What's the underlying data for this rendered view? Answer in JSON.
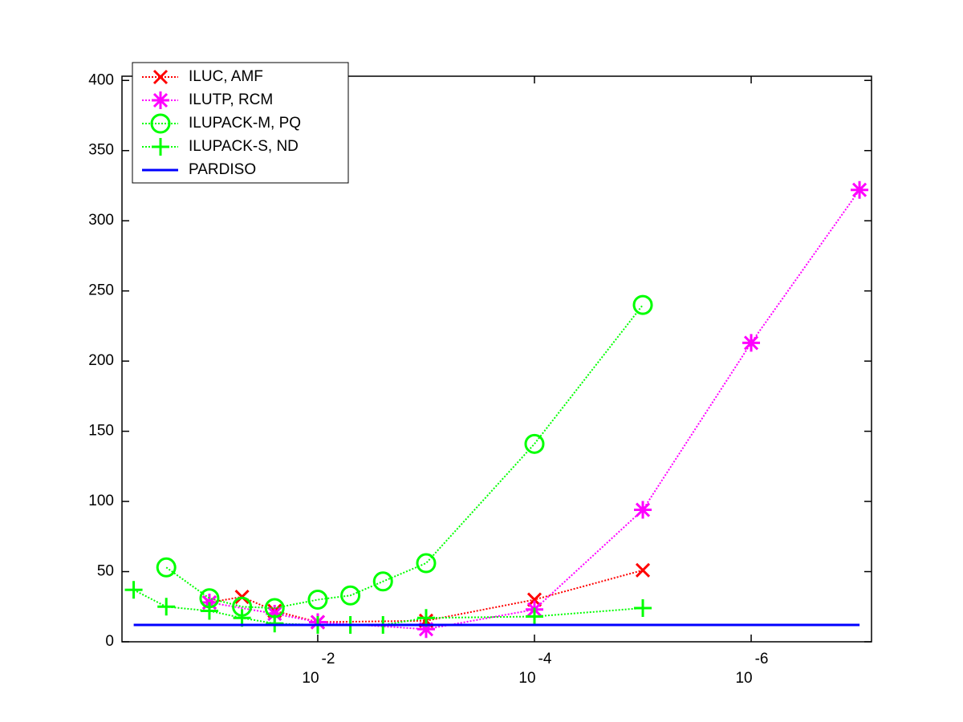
{
  "chart_data": {
    "type": "line",
    "xscale": "log",
    "xlim": [
      0.641,
      7.75e-08
    ],
    "ylim": [
      0,
      403
    ],
    "xticks": [
      {
        "value": 0.01,
        "label": "10",
        "exponent": "-2"
      },
      {
        "value": 0.0001,
        "label": "10",
        "exponent": "-4"
      },
      {
        "value": 1e-06,
        "label": "10",
        "exponent": "-6"
      }
    ],
    "yticks": [
      0,
      50,
      100,
      150,
      200,
      250,
      300,
      350,
      400
    ],
    "legend": "upper left",
    "series": [
      {
        "name": "ILUC, AMF",
        "color": "#ff0000",
        "marker": "x",
        "linestyle": "dotted",
        "x": [
          0.1,
          0.05,
          0.025,
          0.01,
          0.001,
          0.0001,
          1e-05
        ],
        "values": [
          28,
          32,
          22,
          14,
          15,
          30,
          51
        ]
      },
      {
        "name": "ILUTP, RCM",
        "color": "#ff00ff",
        "marker": "*",
        "linestyle": "dotted",
        "x": [
          0.1,
          0.025,
          0.01,
          0.001,
          0.0001,
          1e-05,
          1e-06,
          1e-07
        ],
        "values": [
          28,
          20,
          14,
          9,
          23,
          94,
          213,
          322
        ]
      },
      {
        "name": "ILUPACK-M, PQ",
        "color": "#00ff00",
        "marker": "o",
        "linestyle": "dotted",
        "x": [
          0.25,
          0.1,
          0.05,
          0.025,
          0.01,
          0.005,
          0.0025,
          0.001,
          0.0001,
          1e-05
        ],
        "values": [
          53,
          31,
          25,
          24,
          30,
          33,
          43,
          56,
          141,
          240
        ]
      },
      {
        "name": "ILUPACK-S, ND",
        "color": "#00ff00",
        "marker": "+",
        "linestyle": "dotted",
        "x": [
          0.5,
          0.25,
          0.1,
          0.05,
          0.025,
          0.01,
          0.005,
          0.0025,
          0.001,
          0.0001,
          1e-05
        ],
        "values": [
          37,
          25,
          22,
          17,
          13,
          12,
          12,
          12,
          17,
          18,
          24
        ]
      },
      {
        "name": "PARDISO",
        "color": "#0000ff",
        "marker": "none",
        "linestyle": "solid",
        "x": [
          0.5,
          1e-07
        ],
        "values": [
          12,
          12
        ]
      }
    ]
  }
}
